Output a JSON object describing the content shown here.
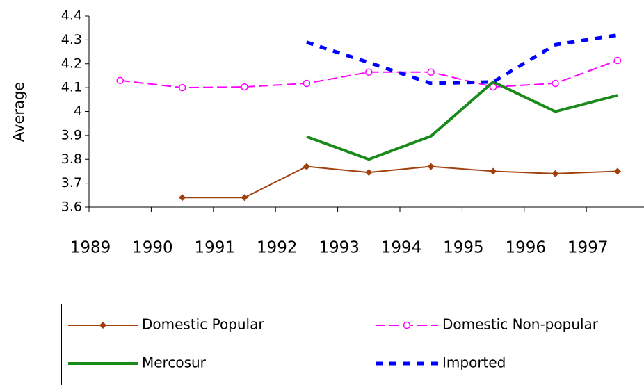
{
  "chart_data": {
    "type": "line",
    "y_label": "Average",
    "categories": [
      "1989",
      "1990",
      "1991",
      "1992",
      "1993",
      "1994",
      "1995",
      "1996",
      "1997"
    ],
    "ylim": [
      3.6,
      4.4
    ],
    "yticks": [
      3.6,
      3.7,
      3.8,
      3.9,
      4,
      4.1,
      4.2,
      4.3,
      4.4
    ],
    "grid": false,
    "legend": "bottom",
    "series": [
      {
        "name": "Domestic Popular",
        "color": "#a0410d",
        "marker": "diamond",
        "dash": "solid",
        "width": 2,
        "values": [
          null,
          3.64,
          3.64,
          3.77,
          3.745,
          3.77,
          3.75,
          3.74,
          3.75
        ]
      },
      {
        "name": "Domestic Non-popular",
        "color": "#ff00ff",
        "marker": "circle",
        "dash": "dashed",
        "width": 2,
        "values": [
          4.13,
          4.1,
          4.103,
          4.118,
          4.165,
          4.165,
          4.103,
          4.118,
          4.214
        ]
      },
      {
        "name": "Mercosur",
        "color": "#1a8a1a",
        "marker": "none",
        "dash": "solid",
        "width": 4,
        "values": [
          null,
          null,
          null,
          3.895,
          3.8,
          3.897,
          4.124,
          4,
          4.068
        ]
      },
      {
        "name": "Imported",
        "color": "#0000ff",
        "marker": "none",
        "dash": "dotted",
        "width": 5,
        "values": [
          null,
          null,
          null,
          4.29,
          4.205,
          4.118,
          4.124,
          4.28,
          4.32
        ]
      }
    ]
  }
}
